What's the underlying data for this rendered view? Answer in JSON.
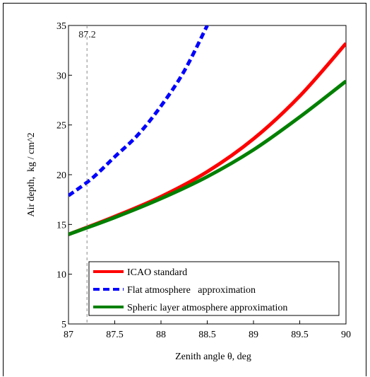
{
  "chart_data": {
    "type": "line",
    "title": "",
    "xlabel": "Zenith angle θ, deg",
    "ylabel": "Air depth,  kg / cm^2",
    "xlim": [
      87,
      90
    ],
    "ylim": [
      5,
      35
    ],
    "x_ticks": [
      "87",
      "87.5",
      "88",
      "88.5",
      "89",
      "89.5",
      "90"
    ],
    "y_ticks": [
      "5",
      "10",
      "15",
      "20",
      "25",
      "30",
      "35"
    ],
    "grid": false,
    "legend_position": "bottom",
    "annotation": {
      "text": "87.2",
      "x": 87.2,
      "style": "dashed vertical line"
    },
    "series": [
      {
        "name": "ICAO standard",
        "color": "#ff0000",
        "dash": "solid",
        "x": [
          87,
          87.5,
          88,
          88.5,
          89,
          89.5,
          90
        ],
        "y": [
          14.0,
          15.8,
          17.8,
          20.3,
          23.6,
          27.9,
          33.2
        ]
      },
      {
        "name": "Flat atmosphere   approximation",
        "color": "#0000ff",
        "dash": "dashed",
        "x": [
          87,
          87.25,
          87.5,
          87.75,
          88,
          88.25,
          88.5
        ],
        "y": [
          17.9,
          19.6,
          21.8,
          24.0,
          26.9,
          30.4,
          35.0
        ]
      },
      {
        "name": "Spheric layer atmosphere approximation",
        "color": "#008000",
        "dash": "solid",
        "x": [
          87,
          87.5,
          88,
          88.5,
          89,
          89.5,
          90
        ],
        "y": [
          14.0,
          15.7,
          17.6,
          19.8,
          22.5,
          25.8,
          29.4
        ]
      }
    ]
  }
}
